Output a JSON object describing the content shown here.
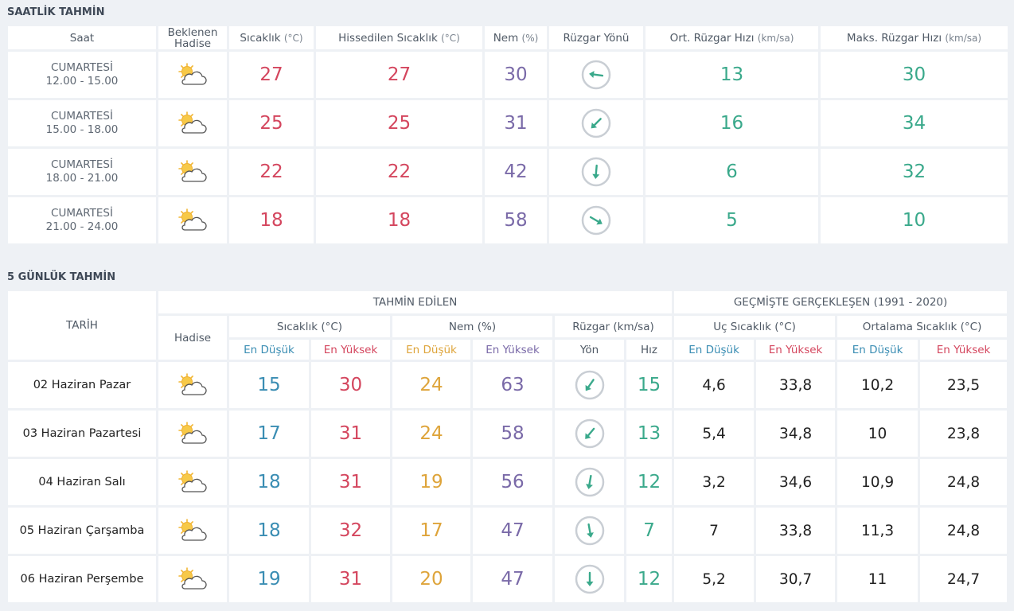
{
  "hourly": {
    "title": "SAATLİK TAHMİN",
    "headers": [
      {
        "label": "Saat"
      },
      {
        "label": "Beklenen Hadise"
      },
      {
        "label": "Sıcaklık",
        "unit": "(°C)"
      },
      {
        "label": "Hissedilen Sıcaklık",
        "unit": "(°C)"
      },
      {
        "label": "Nem",
        "unit": "(%)"
      },
      {
        "label": "Rüzgar Yönü"
      },
      {
        "label": "Ort. Rüzgar Hızı",
        "unit": "(km/sa)"
      },
      {
        "label": "Maks. Rüzgar Hızı",
        "unit": "(km/sa)"
      }
    ],
    "rows": [
      {
        "day": "CUMARTESİ",
        "time": "12.00 - 15.00",
        "temp": 27,
        "feels": 27,
        "humidity": 30,
        "wind_avg": 13,
        "wind_max": 30
      },
      {
        "day": "CUMARTESİ",
        "time": "15.00 - 18.00",
        "temp": 25,
        "feels": 25,
        "humidity": 31,
        "wind_avg": 16,
        "wind_max": 34
      },
      {
        "day": "CUMARTESİ",
        "time": "18.00 - 21.00",
        "temp": 22,
        "feels": 22,
        "humidity": 42,
        "wind_avg": 6,
        "wind_max": 32
      },
      {
        "day": "CUMARTESİ",
        "time": "21.00 - 24.00",
        "temp": 18,
        "feels": 18,
        "humidity": 58,
        "wind_avg": 5,
        "wind_max": 10
      }
    ]
  },
  "daily": {
    "title": "5 GÜNLÜK TAHMİN",
    "groups": [
      "TAHMİN EDİLEN",
      "GEÇMİŞTE GERÇEKLEŞEN (1991 - 2020)"
    ],
    "date_header": "TARİH",
    "event_header": "Hadise",
    "headers": [
      "Sıcaklık (°C)",
      "Nem (%)",
      "Rüzgar (km/sa)",
      "Uç Sıcaklık (°C)",
      "Ortalama Sıcaklık (°C)"
    ],
    "subheaders": [
      "En Düşük",
      "En Yüksek",
      "En Düşük",
      "En Yüksek",
      "Yön",
      "Hız",
      "En Düşük",
      "En Yüksek",
      "En Düşük",
      "En Yüksek"
    ],
    "rows": [
      {
        "date": "02 Haziran Pazar",
        "temp_min": 15,
        "temp_max": 30,
        "hum_min": 24,
        "hum_max": 63,
        "wind_speed": 15,
        "rec_min": "4,6",
        "rec_max": "33,8",
        "avg_min": "10,2",
        "avg_max": "23,5"
      },
      {
        "date": "03 Haziran Pazartesi",
        "temp_min": 17,
        "temp_max": 31,
        "hum_min": 24,
        "hum_max": 58,
        "wind_speed": 13,
        "rec_min": "5,4",
        "rec_max": "34,8",
        "avg_min": 10,
        "avg_max": "23,8"
      },
      {
        "date": "04 Haziran Salı",
        "temp_min": 18,
        "temp_max": 31,
        "hum_min": 19,
        "hum_max": 56,
        "wind_speed": 12,
        "rec_min": "3,2",
        "rec_max": "34,6",
        "avg_min": "10,9",
        "avg_max": "24,8"
      },
      {
        "date": "05 Haziran Çarşamba",
        "temp_min": 18,
        "temp_max": 32,
        "hum_min": 17,
        "hum_max": 47,
        "wind_speed": 7,
        "rec_min": 7,
        "rec_max": "33,8",
        "avg_min": "11,3",
        "avg_max": "24,8"
      },
      {
        "date": "06 Haziran Perşembe",
        "temp_min": 19,
        "temp_max": 31,
        "hum_min": 20,
        "hum_max": 47,
        "wind_speed": 12,
        "rec_min": "5,2",
        "rec_max": "30,7",
        "avg_min": 11,
        "avg_max": "24,7"
      }
    ]
  }
}
